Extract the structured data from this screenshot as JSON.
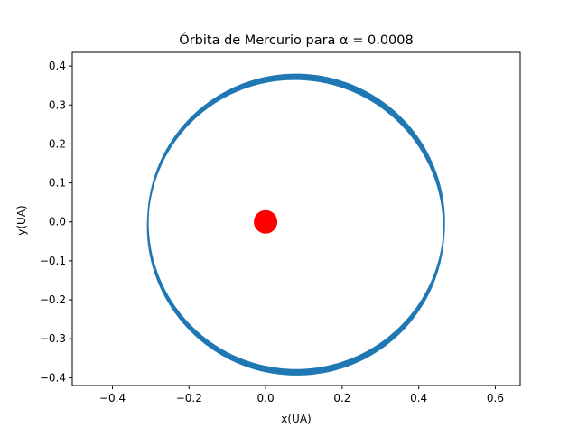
{
  "chart_data": {
    "type": "scatter",
    "title": "Órbita de Mercurio para α = 0.0008",
    "xlabel": "x(UA)",
    "ylabel": "y(UA)",
    "xlim": [
      -0.505,
      0.665
    ],
    "ylim": [
      -0.42,
      0.435
    ],
    "xticks": [
      -0.4,
      -0.2,
      0.0,
      0.2,
      0.4,
      0.6
    ],
    "xtick_labels": [
      "−0.4",
      "−0.2",
      "0.0",
      "0.2",
      "0.4",
      "0.6"
    ],
    "yticks": [
      -0.4,
      -0.3,
      -0.2,
      -0.1,
      0.0,
      0.1,
      0.2,
      0.3,
      0.4
    ],
    "ytick_labels": [
      "−0.4",
      "−0.3",
      "−0.2",
      "−0.1",
      "0.0",
      "0.1",
      "0.2",
      "0.3",
      "0.4"
    ],
    "grid": false,
    "series": [
      {
        "kind": "orbit",
        "color": "#1f77b4",
        "semi_major_axis": 0.387,
        "eccentricity": 0.206,
        "periapsis_angle_start_deg": 0,
        "periapsis_angle_end_deg": 10,
        "orbits": 12
      },
      {
        "kind": "sun",
        "color": "#ff0000",
        "x": 0.0,
        "y": 0.0
      }
    ]
  }
}
